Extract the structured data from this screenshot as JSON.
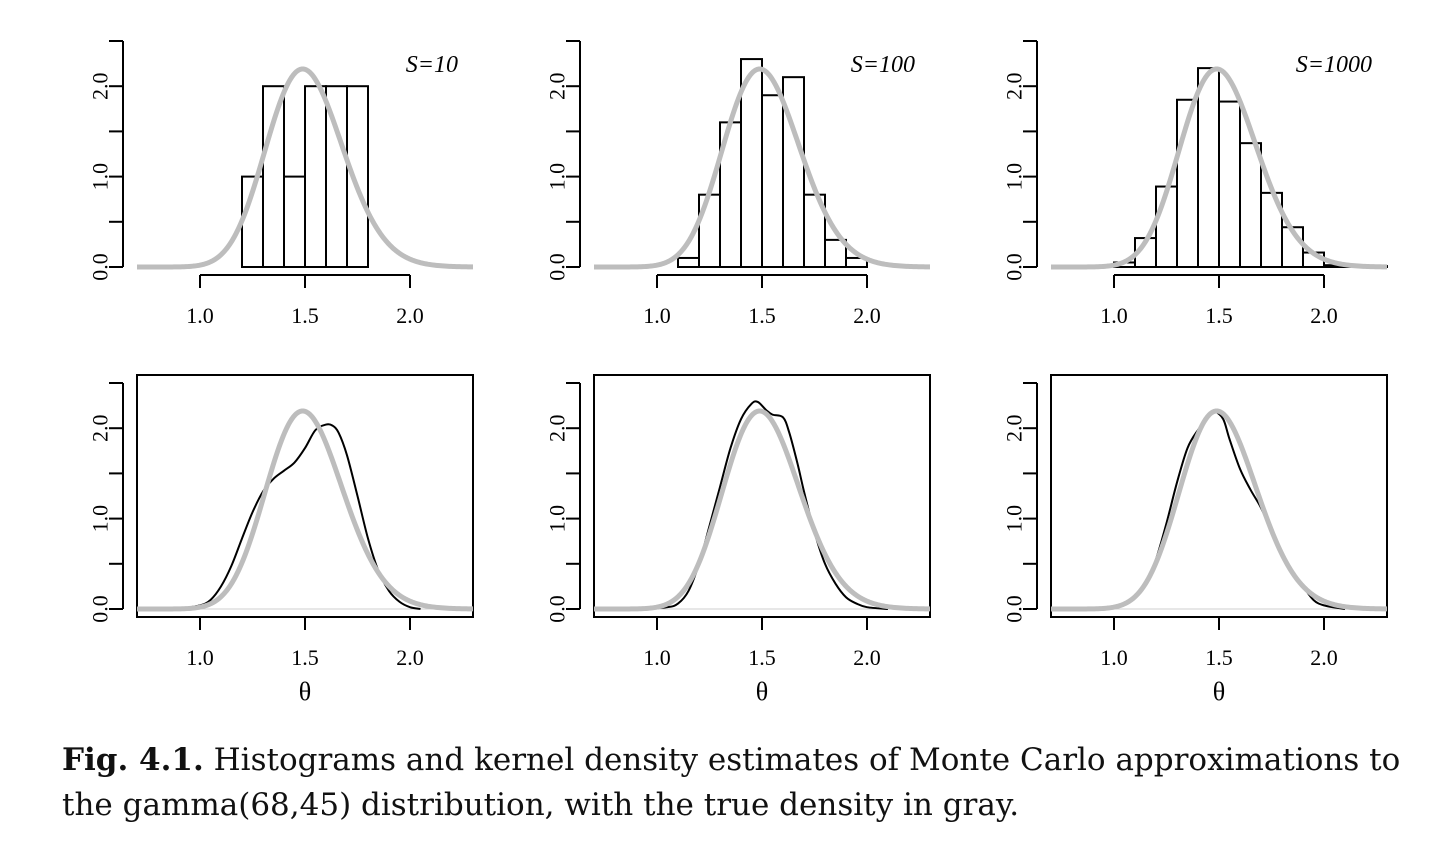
{
  "caption": {
    "label": "Fig. 4.1.",
    "text": "Histograms and kernel density estimates of Monte Carlo approximations to the gamma(68,45) distribution, with the true density in gray."
  },
  "colors": {
    "true_density": "#bdbdbd",
    "histogram": "#000000",
    "kde": "#000000"
  },
  "chart_data": [
    {
      "type": "bar",
      "kind": "histogram",
      "row": "top",
      "column": 1,
      "annotation": "S=10",
      "xlabel": "",
      "ylabel": "",
      "xlim": [
        0.7,
        2.3
      ],
      "ylim": [
        0,
        2.5
      ],
      "x_ticks": [
        1.0,
        1.5,
        2.0
      ],
      "x_tick_labels": [
        "1.0",
        "1.5",
        "2.0"
      ],
      "y_ticks": [
        0,
        0.5,
        1.0,
        1.5,
        2.0,
        2.5
      ],
      "y_tick_labels": [
        "0.0",
        "",
        "1.0",
        "",
        "2.0",
        ""
      ],
      "bin_edges": [
        1.2,
        1.3,
        1.4,
        1.5,
        1.6,
        1.7,
        1.8
      ],
      "values": [
        1,
        2,
        1,
        2,
        2,
        2
      ],
      "true_density": {
        "distribution": "gamma",
        "shape": 68,
        "rate": 45
      }
    },
    {
      "type": "bar",
      "kind": "histogram",
      "row": "top",
      "column": 2,
      "annotation": "S=100",
      "xlabel": "",
      "ylabel": "",
      "xlim": [
        0.7,
        2.3
      ],
      "ylim": [
        0,
        2.5
      ],
      "x_ticks": [
        1.0,
        1.5,
        2.0
      ],
      "x_tick_labels": [
        "1.0",
        "1.5",
        "2.0"
      ],
      "y_ticks": [
        0,
        0.5,
        1.0,
        1.5,
        2.0,
        2.5
      ],
      "y_tick_labels": [
        "0.0",
        "",
        "1.0",
        "",
        "2.0",
        ""
      ],
      "bin_edges": [
        1.1,
        1.2,
        1.3,
        1.4,
        1.5,
        1.6,
        1.7,
        1.8,
        1.9,
        2.0
      ],
      "values": [
        0.1,
        0.8,
        1.6,
        2.3,
        1.9,
        2.1,
        0.8,
        0.3,
        0.1
      ],
      "true_density": {
        "distribution": "gamma",
        "shape": 68,
        "rate": 45
      }
    },
    {
      "type": "bar",
      "kind": "histogram",
      "row": "top",
      "column": 3,
      "annotation": "S=1000",
      "xlabel": "",
      "ylabel": "",
      "xlim": [
        0.7,
        2.3
      ],
      "ylim": [
        0,
        2.5
      ],
      "x_ticks": [
        1.0,
        1.5,
        2.0
      ],
      "x_tick_labels": [
        "1.0",
        "1.5",
        "2.0"
      ],
      "y_ticks": [
        0,
        0.5,
        1.0,
        1.5,
        2.0,
        2.5
      ],
      "y_tick_labels": [
        "0.0",
        "",
        "1.0",
        "",
        "2.0",
        ""
      ],
      "bin_edges": [
        1.0,
        1.1,
        1.2,
        1.3,
        1.4,
        1.5,
        1.6,
        1.7,
        1.8,
        1.9,
        2.0,
        2.1,
        2.2,
        2.3
      ],
      "values": [
        0.05,
        0.32,
        0.89,
        1.85,
        2.2,
        1.83,
        1.37,
        0.82,
        0.44,
        0.16,
        0.02,
        0.01,
        0.01
      ],
      "true_density": {
        "distribution": "gamma",
        "shape": 68,
        "rate": 45
      }
    },
    {
      "type": "line",
      "kind": "kde",
      "row": "bottom",
      "column": 1,
      "xlabel": "θ",
      "ylabel": "",
      "xlim": [
        0.7,
        2.3
      ],
      "ylim": [
        0,
        2.5
      ],
      "x_ticks": [
        1.0,
        1.5,
        2.0
      ],
      "x_tick_labels": [
        "1.0",
        "1.5",
        "2.0"
      ],
      "y_ticks": [
        0,
        0.5,
        1.0,
        1.5,
        2.0,
        2.5
      ],
      "y_tick_labels": [
        "0.0",
        "",
        "1.0",
        "",
        "2.0",
        ""
      ],
      "series": [
        {
          "name": "kernel density estimate",
          "x": [
            0.9,
            1.0,
            1.05,
            1.1,
            1.15,
            1.2,
            1.25,
            1.3,
            1.35,
            1.4,
            1.45,
            1.5,
            1.55,
            1.6,
            1.63,
            1.66,
            1.7,
            1.75,
            1.8,
            1.85,
            1.9,
            1.95,
            2.0,
            2.05
          ],
          "y": [
            0.0,
            0.04,
            0.1,
            0.25,
            0.48,
            0.78,
            1.07,
            1.3,
            1.44,
            1.53,
            1.62,
            1.78,
            1.98,
            2.04,
            2.03,
            1.95,
            1.7,
            1.25,
            0.78,
            0.42,
            0.2,
            0.08,
            0.02,
            0.0
          ]
        },
        {
          "name": "true density",
          "distribution": "gamma",
          "shape": 68,
          "rate": 45
        }
      ]
    },
    {
      "type": "line",
      "kind": "kde",
      "row": "bottom",
      "column": 2,
      "xlabel": "θ",
      "ylabel": "",
      "xlim": [
        0.7,
        2.3
      ],
      "ylim": [
        0,
        2.5
      ],
      "x_ticks": [
        1.0,
        1.5,
        2.0
      ],
      "x_tick_labels": [
        "1.0",
        "1.5",
        "2.0"
      ],
      "y_ticks": [
        0,
        0.5,
        1.0,
        1.5,
        2.0,
        2.5
      ],
      "y_tick_labels": [
        "0.0",
        "",
        "1.0",
        "",
        "2.0",
        ""
      ],
      "series": [
        {
          "name": "kernel density estimate",
          "x": [
            0.95,
            1.05,
            1.1,
            1.15,
            1.2,
            1.25,
            1.3,
            1.35,
            1.4,
            1.45,
            1.48,
            1.52,
            1.55,
            1.6,
            1.63,
            1.67,
            1.7,
            1.75,
            1.8,
            1.85,
            1.9,
            1.95,
            2.0,
            2.1
          ],
          "y": [
            0.0,
            0.02,
            0.06,
            0.2,
            0.5,
            0.92,
            1.35,
            1.78,
            2.1,
            2.27,
            2.29,
            2.2,
            2.15,
            2.12,
            1.95,
            1.6,
            1.3,
            0.85,
            0.5,
            0.28,
            0.13,
            0.06,
            0.02,
            0.0
          ]
        },
        {
          "name": "true density",
          "distribution": "gamma",
          "shape": 68,
          "rate": 45
        }
      ]
    },
    {
      "type": "line",
      "kind": "kde",
      "row": "bottom",
      "column": 3,
      "xlabel": "θ",
      "ylabel": "",
      "xlim": [
        0.7,
        2.3
      ],
      "ylim": [
        0,
        2.5
      ],
      "x_ticks": [
        1.0,
        1.5,
        2.0
      ],
      "x_tick_labels": [
        "1.0",
        "1.5",
        "2.0"
      ],
      "y_ticks": [
        0,
        0.5,
        1.0,
        1.5,
        2.0,
        2.5
      ],
      "y_tick_labels": [
        "0.0",
        "",
        "1.0",
        "",
        "2.0",
        ""
      ],
      "series": [
        {
          "name": "kernel density estimate",
          "x": [
            0.95,
            1.05,
            1.1,
            1.15,
            1.2,
            1.25,
            1.3,
            1.35,
            1.4,
            1.45,
            1.48,
            1.52,
            1.55,
            1.6,
            1.65,
            1.7,
            1.75,
            1.8,
            1.85,
            1.9,
            1.95,
            2.0,
            2.1
          ],
          "y": [
            0.0,
            0.05,
            0.13,
            0.28,
            0.55,
            0.95,
            1.4,
            1.78,
            1.98,
            2.12,
            2.18,
            2.1,
            1.88,
            1.55,
            1.32,
            1.12,
            0.86,
            0.6,
            0.4,
            0.25,
            0.1,
            0.04,
            0.0
          ]
        },
        {
          "name": "true density",
          "distribution": "gamma",
          "shape": 68,
          "rate": 45
        }
      ]
    }
  ]
}
